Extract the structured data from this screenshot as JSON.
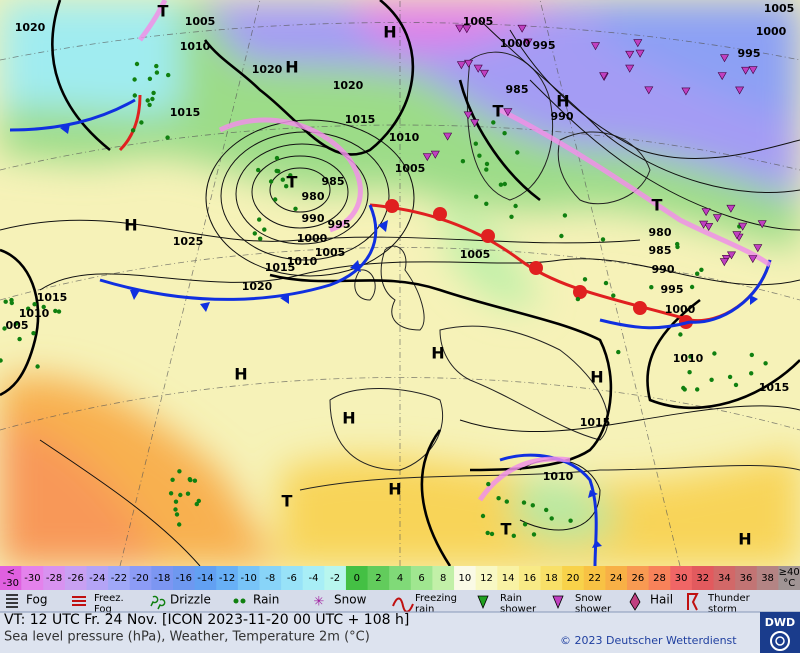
{
  "map": {
    "labels": [
      "H",
      "H",
      "H",
      "H",
      "H",
      "H",
      "H",
      "H",
      "H",
      "H",
      "T",
      "T",
      "T",
      "T",
      "T",
      "T",
      "1020",
      "1005",
      "1010",
      "1020",
      "1020",
      "1015",
      "1015",
      "1010",
      "1005",
      "985",
      "980",
      "990",
      "995",
      "1000",
      "1005",
      "1010",
      "1015",
      "1020",
      "1025",
      "1005",
      "1000",
      "995",
      "985",
      "990",
      "1005",
      "1000",
      "995",
      "980",
      "985",
      "990",
      "995",
      "1000",
      "1005",
      "1010",
      "1015",
      "1015",
      "1010",
      "1015",
      "1010",
      "005"
    ]
  },
  "colorbar": {
    "first": {
      "top": "<",
      "bottom": "-30"
    },
    "cells": [
      {
        "label": "-30",
        "color": "#e482ec"
      },
      {
        "label": "-28",
        "color": "#d892f0"
      },
      {
        "label": "-26",
        "color": "#c8a0f2"
      },
      {
        "label": "-24",
        "color": "#b4a4f6"
      },
      {
        "label": "-22",
        "color": "#a0a8f8"
      },
      {
        "label": "-20",
        "color": "#8c9cf6"
      },
      {
        "label": "-18",
        "color": "#7c96f2"
      },
      {
        "label": "-16",
        "color": "#6e98f0"
      },
      {
        "label": "-14",
        "color": "#62a0f2"
      },
      {
        "label": "-12",
        "color": "#68b0f6"
      },
      {
        "label": "-10",
        "color": "#78c4f8"
      },
      {
        "label": "-8",
        "color": "#88d4f8"
      },
      {
        "label": "-6",
        "color": "#98e2f8"
      },
      {
        "label": "-4",
        "color": "#a8eef6"
      },
      {
        "label": "-2",
        "color": "#b8f6ee"
      },
      {
        "label": "0",
        "color": "#44c044"
      },
      {
        "label": "2",
        "color": "#62cc5c"
      },
      {
        "label": "4",
        "color": "#80da78"
      },
      {
        "label": "6",
        "color": "#a0e690"
      },
      {
        "label": "8",
        "color": "#c2f0a8"
      },
      {
        "label": "10",
        "color": "#fafae6"
      },
      {
        "label": "12",
        "color": "#f8f8c4"
      },
      {
        "label": "14",
        "color": "#f8f2a4"
      },
      {
        "label": "16",
        "color": "#f8ea86"
      },
      {
        "label": "18",
        "color": "#f8e068"
      },
      {
        "label": "20",
        "color": "#f8d24a"
      },
      {
        "label": "22",
        "color": "#f8c244"
      },
      {
        "label": "24",
        "color": "#f8b046"
      },
      {
        "label": "26",
        "color": "#f89a52"
      },
      {
        "label": "28",
        "color": "#f8825a"
      },
      {
        "label": "30",
        "color": "#f06666"
      },
      {
        "label": "32",
        "color": "#e25a5e"
      },
      {
        "label": "34",
        "color": "#d26868"
      },
      {
        "label": "36",
        "color": "#c27474"
      },
      {
        "label": "38",
        "color": "#b48484"
      }
    ],
    "last": {
      "top": "≥40",
      "bottom": "°C"
    }
  },
  "legend": [
    {
      "lines": [
        "Fog"
      ]
    },
    {
      "lines": [
        "Freez.",
        "Fog"
      ]
    },
    {
      "lines": [
        "Drizzle"
      ]
    },
    {
      "lines": [
        "Rain"
      ]
    },
    {
      "lines": [
        "Snow"
      ]
    },
    {
      "lines": [
        "Freezing",
        "rain"
      ]
    },
    {
      "lines": [
        "Rain",
        "shower"
      ]
    },
    {
      "lines": [
        "Snow",
        "shower"
      ]
    },
    {
      "lines": [
        "Hail"
      ]
    },
    {
      "lines": [
        "Thunder",
        "storm"
      ]
    }
  ],
  "footer": {
    "valid_time": "VT: 12 UTC Fr.  24 Nov. [ICON 2023-11-20  00 UTC + 108 h]",
    "description": "Sea level pressure (hPa), Weather, Temperature 2m (°C)",
    "copyright": "© 2023 Deutscher Wetterdienst",
    "logo": "DWD"
  }
}
